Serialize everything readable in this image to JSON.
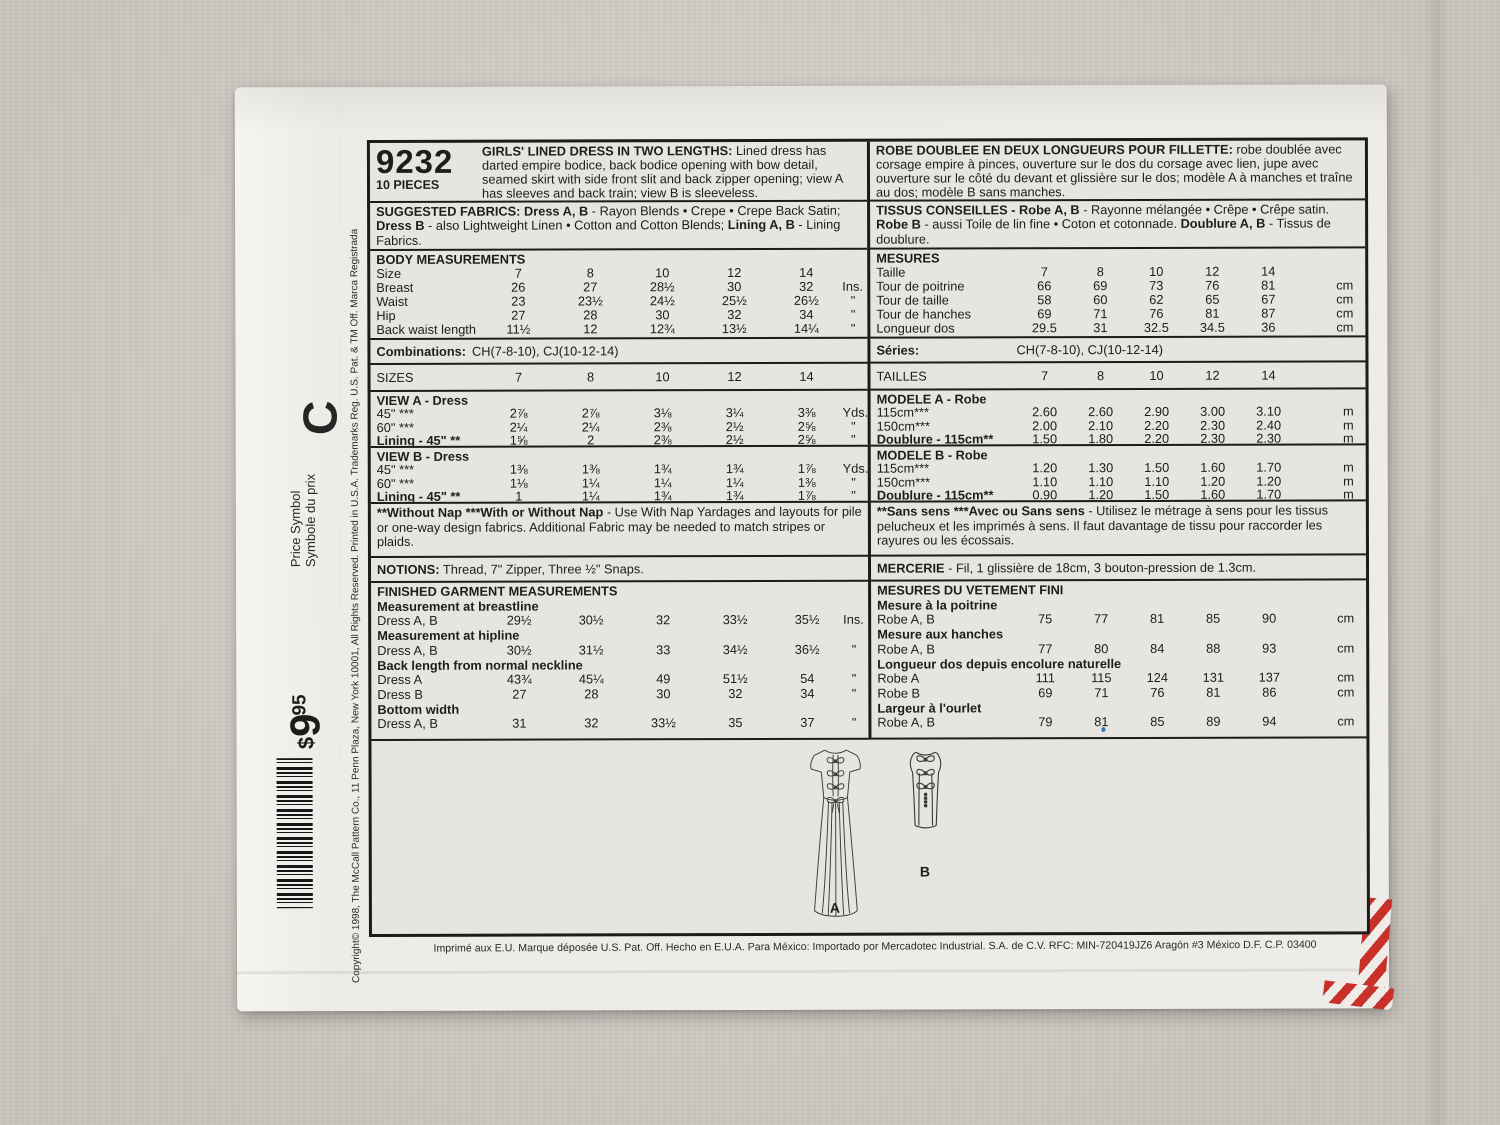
{
  "colors": {
    "paper": "#edece8",
    "panel_bg": "#e7e5e0",
    "ink": "#1c1c1c",
    "sticker_red": "#c8302a",
    "fabric_bg": "#d5cfc7"
  },
  "side": {
    "copyright_vertical": "Copyright© 1998, The McCall Pattern Co., 11 Penn Plaza, New York 10001, All Rights Reserved. Printed in U.S.A. Trademarks Reg. U.S. Pat. & TM Off. Marca Registrada",
    "price_symbol_en": "Price Symbol",
    "price_symbol_fr": "Symbole du prix",
    "price_symbol_letter": "C",
    "price_dollar": "$",
    "price_main": "9",
    "price_cents": "95"
  },
  "header": {
    "number": "9232",
    "pieces": "10 PIECES",
    "desc_en_html": "<b>GIRLS' LINED DRESS IN TWO LENGTHS:</b> Lined dress has darted empire bodice, back bodice opening with bow detail, seamed skirt with side front slit and back zipper opening; view A has sleeves and back train; view B is sleeveless.",
    "desc_fr_html": "<b>ROBE DOUBLEE EN DEUX LONGUEURS POUR FILLETTE:</b> robe doublée avec corsage empire à pinces, ouverture sur le dos du corsage avec lien, jupe avec ouverture sur le côté du devant et glissière sur le dos; modèle A à manches et traîne au dos; modèle B sans manches."
  },
  "fabrics": {
    "en_html": "<b>SUGGESTED FABRICS: Dress A, B</b> - Rayon Blends • Crepe • Crepe Back Satin; <b>Dress B</b> - also Lightweight Linen • Cotton and Cotton Blends; <b>Lining A, B</b> - Lining Fabrics.",
    "fr_html": "<b>TISSUS CONSEILLES - Robe A, B</b> - Rayonne mélangée • Crêpe • Crêpe satin. <b>Robe B</b> - aussi Toile de lin fine • Coton et cotonnade. <b>Doublure A, B</b> - Tissus de doublure."
  },
  "body_meas": {
    "title_en": "BODY MEASUREMENTS",
    "rows_en": [
      {
        "label": "Size",
        "v": [
          "7",
          "8",
          "10",
          "12",
          "14"
        ],
        "u": ""
      },
      {
        "label": "Breast",
        "v": [
          "26",
          "27",
          "28½",
          "30",
          "32"
        ],
        "u": "Ins."
      },
      {
        "label": "Waist",
        "v": [
          "23",
          "23½",
          "24½",
          "25½",
          "26½"
        ],
        "u": "\""
      },
      {
        "label": "Hip",
        "v": [
          "27",
          "28",
          "30",
          "32",
          "34"
        ],
        "u": "\""
      },
      {
        "label": "Back waist length",
        "v": [
          "11½",
          "12",
          "12¾",
          "13½",
          "14¼"
        ],
        "u": "\""
      }
    ],
    "title_fr": "MESURES",
    "rows_fr": [
      {
        "label": "Taille",
        "v": [
          "7",
          "8",
          "10",
          "12",
          "14"
        ],
        "u": ""
      },
      {
        "label": "Tour de poitrine",
        "v": [
          "66",
          "69",
          "73",
          "76",
          "81"
        ],
        "u": "cm"
      },
      {
        "label": "Tour de taille",
        "v": [
          "58",
          "60",
          "62",
          "65",
          "67"
        ],
        "u": "cm"
      },
      {
        "label": "Tour de hanches",
        "v": [
          "69",
          "71",
          "76",
          "81",
          "87"
        ],
        "u": "cm"
      },
      {
        "label": "Longueur dos",
        "v": [
          "29.5",
          "31",
          "32.5",
          "34.5",
          "36"
        ],
        "u": "cm"
      }
    ]
  },
  "combos": {
    "en_label": "Combinations:",
    "en_value": "CH(7-8-10), CJ(10-12-14)",
    "fr_label": "Séries:",
    "fr_value": "CH(7-8-10), CJ(10-12-14)"
  },
  "sizes_row": {
    "en": {
      "label": "SIZES",
      "v": [
        "7",
        "8",
        "10",
        "12",
        "14"
      ],
      "u": ""
    },
    "fr": {
      "label": "TAILLES",
      "v": [
        "7",
        "8",
        "10",
        "12",
        "14"
      ],
      "u": ""
    }
  },
  "yardage": {
    "view_a_title": "VIEW A - Dress",
    "view_a_rows": [
      {
        "label": "45\" ***",
        "v": [
          "2⅞",
          "2⅞",
          "3⅛",
          "3¼",
          "3⅜"
        ],
        "u": "Yds."
      },
      {
        "label": "60\" ***",
        "v": [
          "2¼",
          "2¼",
          "2⅜",
          "2½",
          "2⅝"
        ],
        "u": "\""
      },
      {
        "label": "Lining - 45\" **",
        "b": true,
        "v": [
          "1⅝",
          "2",
          "2⅜",
          "2½",
          "2⅝"
        ],
        "u": "\""
      }
    ],
    "view_b_title": "VIEW B - Dress",
    "view_b_rows": [
      {
        "label": "45\" ***",
        "v": [
          "1⅜",
          "1⅜",
          "1¾",
          "1¾",
          "1⅞"
        ],
        "u": "Yds."
      },
      {
        "label": "60\" ***",
        "v": [
          "1⅛",
          "1¼",
          "1¼",
          "1¼",
          "1⅜"
        ],
        "u": "\""
      },
      {
        "label": "Lining - 45\" **",
        "b": true,
        "v": [
          "1",
          "1¼",
          "1¾",
          "1¾",
          "1⅞"
        ],
        "u": "\""
      }
    ],
    "modele_a_title": "MODELE A - Robe",
    "modele_a_rows": [
      {
        "label": "115cm***",
        "v": [
          "2.60",
          "2.60",
          "2.90",
          "3.00",
          "3.10"
        ],
        "u": "m"
      },
      {
        "label": "150cm***",
        "v": [
          "2.00",
          "2.10",
          "2.20",
          "2.30",
          "2.40"
        ],
        "u": "m"
      },
      {
        "label": "Doublure - 115cm**",
        "b": true,
        "v": [
          "1.50",
          "1.80",
          "2.20",
          "2.30",
          "2.30"
        ],
        "u": "m"
      }
    ],
    "modele_b_title": "MODELE B - Robe",
    "modele_b_rows": [
      {
        "label": "115cm***",
        "v": [
          "1.20",
          "1.30",
          "1.50",
          "1.60",
          "1.70"
        ],
        "u": "m"
      },
      {
        "label": "150cm***",
        "v": [
          "1.10",
          "1.10",
          "1.10",
          "1.20",
          "1.20"
        ],
        "u": "m"
      },
      {
        "label": "Doublure - 115cm**",
        "b": true,
        "v": [
          "0.90",
          "1.20",
          "1.50",
          "1.60",
          "1.70"
        ],
        "u": "m"
      }
    ]
  },
  "nap": {
    "en_html": "<b>**Without Nap ***With or Without Nap</b> - Use With Nap Yardages and layouts for pile or one-way design fabrics. Additional Fabric may be needed to match stripes or plaids.",
    "fr_html": "<b>**Sans sens ***Avec ou Sans sens</b> - Utilisez le métrage à sens pour les tissus pelucheux et les imprimés à sens. Il faut davantage de tissu pour raccorder les rayures ou les écossais."
  },
  "notions": {
    "en_html": "<b>NOTIONS:</b> Thread, 7\" Zipper, Three ½\" Snaps.",
    "fr_html": "<b>MERCERIE</b> - Fil, 1 glissière de 18cm, 3 bouton-pression de 1.3cm."
  },
  "finished": {
    "title_en": "FINISHED GARMENT MEASUREMENTS",
    "sections_en": [
      {
        "heading": "Measurement at breastline",
        "rows": [
          {
            "label": "Dress A, B",
            "v": [
              "29½",
              "30½",
              "32",
              "33½",
              "35½"
            ],
            "u": "Ins."
          }
        ]
      },
      {
        "heading": "Measurement at hipline",
        "rows": [
          {
            "label": "Dress A, B",
            "v": [
              "30½",
              "31½",
              "33",
              "34½",
              "36½"
            ],
            "u": "\""
          }
        ]
      },
      {
        "heading": "Back length from normal neckline",
        "rows": [
          {
            "label": "Dress A",
            "v": [
              "43¾",
              "45¼",
              "49",
              "51½",
              "54"
            ],
            "u": "\""
          },
          {
            "label": "Dress B",
            "v": [
              "27",
              "28",
              "30",
              "32",
              "34"
            ],
            "u": "\""
          }
        ]
      },
      {
        "heading": "Bottom width",
        "rows": [
          {
            "label": "Dress A, B",
            "v": [
              "31",
              "32",
              "33½",
              "35",
              "37"
            ],
            "u": "\""
          }
        ]
      }
    ],
    "title_fr": "MESURES DU VETEMENT FINI",
    "sections_fr": [
      {
        "heading": "Mesure à la poitrine",
        "rows": [
          {
            "label": "Robe A, B",
            "v": [
              "75",
              "77",
              "81",
              "85",
              "90"
            ],
            "u": "cm"
          }
        ]
      },
      {
        "heading": "Mesure aux hanches",
        "rows": [
          {
            "label": "Robe A, B",
            "v": [
              "77",
              "80",
              "84",
              "88",
              "93"
            ],
            "u": "cm"
          }
        ]
      },
      {
        "heading": "Longueur dos depuis encolure naturelle",
        "rows": [
          {
            "label": "Robe A",
            "v": [
              "111",
              "115",
              "124",
              "131",
              "137"
            ],
            "u": "cm"
          },
          {
            "label": "Robe B",
            "v": [
              "69",
              "71",
              "76",
              "81",
              "86"
            ],
            "u": "cm"
          }
        ]
      },
      {
        "heading": "Largeur à l'ourlet",
        "rows": [
          {
            "label": "Robe A, B",
            "v": [
              "79",
              "81",
              "85",
              "89",
              "94"
            ],
            "u": "cm"
          }
        ]
      }
    ]
  },
  "views": {
    "label_a": "A",
    "label_b": "B"
  },
  "footer": {
    "print_line": "Imprimé aux E.U. Marque déposée U.S. Pat. Off.   Hecho en E.U.A.   Para México: Importado por Mercadotec Industrial. S.A. de C.V.   RFC: MIN-720419JZ6   Aragón #3 México D.F.   C.P. 03400"
  }
}
